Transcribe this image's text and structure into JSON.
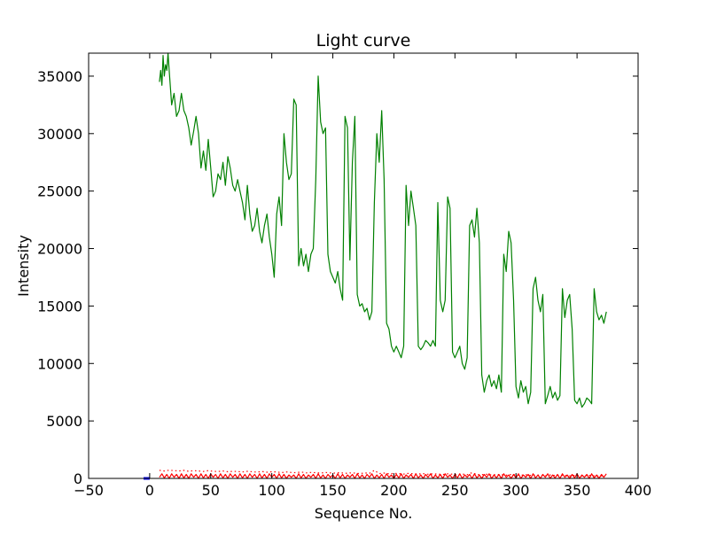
{
  "chart_data": {
    "type": "line",
    "title": "Light curve",
    "xlabel": "Sequence No.",
    "ylabel": "Intensity",
    "xlim": [
      -50,
      400
    ],
    "ylim": [
      0,
      37000
    ],
    "x_ticks": [
      -50,
      0,
      50,
      100,
      150,
      200,
      250,
      300,
      350,
      400
    ],
    "y_ticks": [
      0,
      5000,
      10000,
      15000,
      20000,
      25000,
      30000,
      35000
    ],
    "grid": false,
    "legend": "none",
    "series": [
      {
        "style": "solid",
        "color": "#008000",
        "x": [
          8,
          9,
          10,
          11,
          12,
          13,
          14,
          15,
          16,
          18,
          20,
          22,
          24,
          26,
          28,
          30,
          32,
          34,
          36,
          38,
          40,
          42,
          44,
          46,
          48,
          50,
          52,
          54,
          56,
          58,
          60,
          62,
          64,
          66,
          68,
          70,
          72,
          74,
          76,
          78,
          80,
          82,
          84,
          86,
          88,
          90,
          92,
          94,
          96,
          98,
          100,
          102,
          104,
          106,
          108,
          110,
          112,
          114,
          116,
          118,
          120,
          122,
          124,
          126,
          128,
          130,
          132,
          134,
          136,
          138,
          140,
          142,
          144,
          146,
          148,
          150,
          152,
          154,
          156,
          158,
          160,
          162,
          164,
          166,
          168,
          170,
          172,
          174,
          176,
          178,
          180,
          182,
          184,
          186,
          188,
          190,
          192,
          194,
          196,
          198,
          200,
          202,
          204,
          206,
          208,
          210,
          212,
          214,
          216,
          218,
          220,
          222,
          224,
          226,
          228,
          230,
          232,
          234,
          236,
          238,
          240,
          242,
          244,
          246,
          248,
          250,
          252,
          254,
          256,
          258,
          260,
          262,
          264,
          266,
          268,
          270,
          272,
          274,
          276,
          278,
          280,
          282,
          284,
          286,
          288,
          290,
          292,
          294,
          296,
          298,
          300,
          302,
          304,
          306,
          308,
          310,
          312,
          314,
          316,
          318,
          320,
          322,
          324,
          326,
          328,
          330,
          332,
          334,
          336,
          338,
          340,
          342,
          344,
          346,
          348,
          350,
          352,
          354,
          356,
          358,
          360,
          362,
          364,
          366,
          368,
          370,
          372,
          374
        ],
        "y": [
          34500,
          35500,
          34200,
          36800,
          35000,
          36000,
          35500,
          37000,
          35500,
          32500,
          33500,
          31500,
          32000,
          33500,
          32000,
          31500,
          30500,
          29000,
          30200,
          31500,
          30000,
          27000,
          28500,
          26800,
          29500,
          27000,
          24500,
          25000,
          26500,
          26000,
          27500,
          25500,
          28000,
          27000,
          25500,
          25000,
          26000,
          25000,
          24000,
          22500,
          25500,
          23000,
          21500,
          22000,
          23500,
          21500,
          20500,
          22000,
          23000,
          21000,
          19500,
          17500,
          23000,
          24500,
          22000,
          30000,
          27500,
          26000,
          26500,
          33000,
          32500,
          18500,
          20000,
          18500,
          19500,
          18000,
          19500,
          20000,
          26000,
          35000,
          31000,
          30000,
          30500,
          19500,
          18000,
          17500,
          17000,
          18000,
          16500,
          15500,
          31500,
          30500,
          19000,
          27500,
          31500,
          16000,
          15000,
          15200,
          14500,
          14800,
          13800,
          14500,
          24000,
          30000,
          27500,
          32000,
          26000,
          13500,
          13000,
          11500,
          11000,
          11500,
          11000,
          10500,
          11500,
          25500,
          22000,
          25000,
          23500,
          22000,
          11500,
          11200,
          11500,
          12000,
          11800,
          11500,
          12000,
          11500,
          24000,
          15500,
          14500,
          15500,
          24500,
          23500,
          11000,
          10500,
          11000,
          11500,
          10000,
          9500,
          10500,
          22000,
          22500,
          21000,
          23500,
          20500,
          9000,
          7500,
          8500,
          9000,
          8000,
          8500,
          7800,
          9000,
          7500,
          19500,
          18000,
          21500,
          20500,
          15500,
          8000,
          7000,
          8500,
          7500,
          8000,
          6500,
          7500,
          16500,
          17500,
          15500,
          14500,
          16000,
          6500,
          7200,
          8000,
          7000,
          7500,
          6800,
          7200,
          16500,
          14000,
          15500,
          16000,
          13000,
          6800,
          6500,
          7000,
          6200,
          6500,
          7000,
          6800,
          6500,
          16500,
          14500,
          13800,
          14200,
          13500,
          14500
        ]
      },
      {
        "style": "solid",
        "color": "#ff0000",
        "x": [
          8,
          10,
          12,
          14,
          16,
          18,
          20,
          22,
          24,
          26,
          28,
          30,
          32,
          34,
          36,
          38,
          40,
          42,
          44,
          46,
          48,
          50,
          52,
          54,
          56,
          58,
          60,
          62,
          64,
          66,
          68,
          70,
          72,
          74,
          76,
          78,
          80,
          82,
          84,
          86,
          88,
          90,
          92,
          94,
          96,
          98,
          100,
          102,
          104,
          106,
          108,
          110,
          112,
          114,
          116,
          118,
          120,
          122,
          124,
          126,
          128,
          130,
          132,
          134,
          136,
          138,
          140,
          142,
          144,
          146,
          148,
          150,
          152,
          154,
          156,
          158,
          160,
          162,
          164,
          166,
          168,
          170,
          172,
          174,
          176,
          178,
          180,
          182,
          184,
          186,
          188,
          190,
          192,
          194,
          196,
          198,
          200,
          202,
          204,
          206,
          208,
          210,
          212,
          214,
          216,
          218,
          220,
          222,
          224,
          226,
          228,
          230,
          232,
          234,
          236,
          238,
          240,
          242,
          244,
          246,
          248,
          250,
          252,
          254,
          256,
          258,
          260,
          262,
          264,
          266,
          268,
          270,
          272,
          274,
          276,
          278,
          280,
          282,
          284,
          286,
          288,
          290,
          292,
          294,
          296,
          298,
          300,
          302,
          304,
          306,
          308,
          310,
          312,
          314,
          316,
          318,
          320,
          322,
          324,
          326,
          328,
          330,
          332,
          334,
          336,
          338,
          340,
          342,
          344,
          346,
          348,
          350,
          352,
          354,
          356,
          358,
          360,
          362,
          364,
          366,
          368,
          370,
          372,
          374
        ],
        "y": [
          100,
          400,
          50,
          350,
          0,
          400,
          100,
          350,
          0,
          400,
          50,
          350,
          0,
          400,
          100,
          350,
          0,
          400,
          50,
          350,
          0,
          400,
          100,
          350,
          0,
          400,
          50,
          350,
          0,
          400,
          100,
          350,
          0,
          400,
          50,
          350,
          0,
          400,
          100,
          350,
          0,
          400,
          50,
          350,
          0,
          400,
          100,
          350,
          0,
          400,
          50,
          350,
          0,
          300,
          100,
          300,
          0,
          400,
          50,
          350,
          0,
          300,
          100,
          350,
          0,
          400,
          50,
          300,
          0,
          350,
          100,
          300,
          0,
          400,
          50,
          350,
          0,
          300,
          100,
          350,
          0,
          400,
          50,
          300,
          0,
          350,
          100,
          400,
          0,
          300,
          50,
          350,
          0,
          400,
          100,
          300,
          0,
          350,
          50,
          400,
          0,
          300,
          100,
          350,
          0,
          400,
          50,
          300,
          0,
          350,
          100,
          400,
          0,
          300,
          50,
          350,
          0,
          400,
          100,
          300,
          0,
          350,
          50,
          400,
          0,
          300,
          100,
          350,
          0,
          400,
          50,
          300,
          0,
          350,
          100,
          400,
          0,
          300,
          50,
          350,
          0,
          400,
          100,
          300,
          0,
          350,
          50,
          400,
          0,
          300,
          100,
          350,
          0,
          400,
          50,
          300,
          0,
          350,
          100,
          400,
          0,
          300,
          50,
          350,
          0,
          400,
          100,
          300,
          0,
          350,
          50,
          400,
          0,
          300,
          100,
          350,
          0,
          400,
          50,
          300,
          0,
          350,
          100,
          400
        ]
      },
      {
        "style": "dotted",
        "color": "#ff0000",
        "x": [
          8,
          12,
          16,
          20,
          24,
          28,
          32,
          36,
          40,
          44,
          48,
          52,
          56,
          60,
          64,
          68,
          72,
          76,
          80,
          84,
          88,
          92,
          96,
          100,
          104,
          108,
          112,
          116,
          120,
          124,
          128,
          132,
          136,
          140,
          144,
          148,
          152,
          156,
          160,
          164,
          168,
          172,
          176,
          180,
          184,
          188,
          192,
          196,
          200,
          204,
          208,
          212,
          216,
          220,
          224,
          228,
          232,
          236,
          240,
          244,
          248,
          252,
          256,
          260,
          264,
          268,
          272,
          276,
          280,
          284,
          288,
          292,
          296,
          300,
          304,
          308,
          312,
          316,
          320,
          324,
          328,
          332,
          336,
          340,
          344,
          348,
          352,
          356,
          360,
          364,
          368,
          372
        ],
        "y": [
          700,
          650,
          720,
          680,
          650,
          700,
          620,
          680,
          650,
          600,
          680,
          620,
          600,
          650,
          580,
          620,
          600,
          560,
          620,
          580,
          550,
          600,
          540,
          580,
          560,
          500,
          560,
          520,
          500,
          560,
          480,
          520,
          500,
          460,
          520,
          480,
          460,
          500,
          440,
          480,
          460,
          420,
          480,
          440,
          700,
          420,
          460,
          400,
          440,
          420,
          380,
          440,
          400,
          380,
          420,
          360,
          400,
          380,
          340,
          400,
          360,
          340,
          380,
          320,
          500,
          340,
          320,
          360,
          300,
          340,
          320,
          280,
          340,
          300,
          280,
          320,
          260,
          300,
          280,
          240,
          300,
          260,
          240,
          280,
          220,
          260,
          240,
          200,
          260,
          220,
          200,
          240
        ]
      },
      {
        "style": "solid",
        "color": "#0000ff",
        "x": [
          -5,
          -4,
          -3,
          -2,
          -1,
          0
        ],
        "y": [
          0,
          0,
          0,
          0,
          0,
          0
        ]
      }
    ]
  }
}
